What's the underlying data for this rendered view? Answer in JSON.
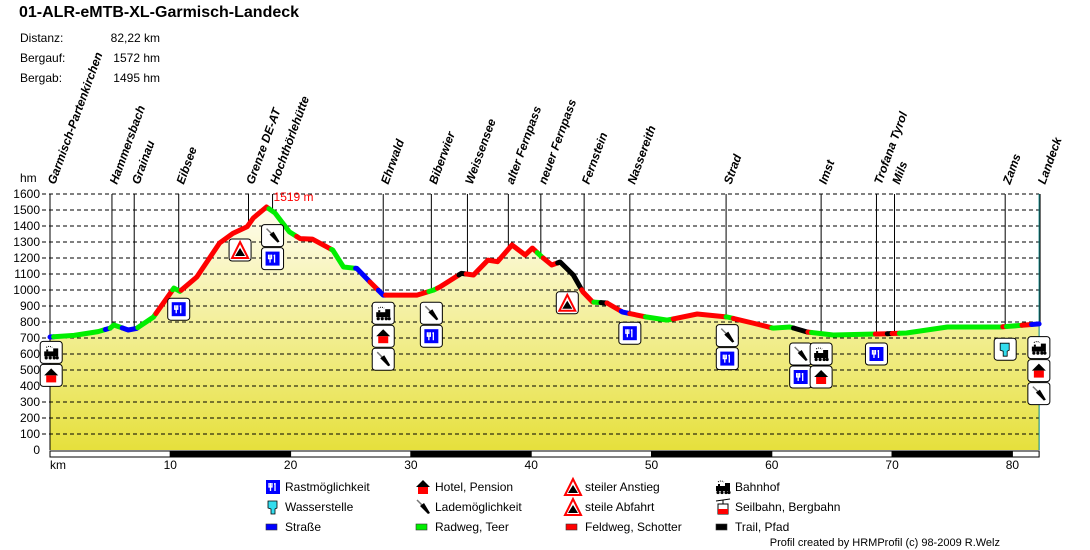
{
  "header": {
    "title": "01-ALR-eMTB-XL-Garmisch-Landeck",
    "stats": [
      {
        "label": "Distanz:",
        "value": "82,22 km"
      },
      {
        "label": "Bergauf:",
        "value": "1572 hm"
      },
      {
        "label": "Bergab:",
        "value": "1495 hm"
      }
    ]
  },
  "credit": "Profil created by HRMProfil (c) 98-2009 R.Welz",
  "colors": {
    "road": "#0000ff",
    "cycle": "#00ee00",
    "gravel": "#ff0000",
    "trail": "#000000",
    "peak": "#ff0000",
    "fill_top": "#fffdf0",
    "fill_bottom": "#e6e03c"
  },
  "chart_data": {
    "type": "area",
    "title": "01-ALR-eMTB-XL-Garmisch-Landeck",
    "xlabel": "km",
    "ylabel": "hm",
    "xlim": [
      0,
      82.22
    ],
    "ylim": [
      0,
      1600
    ],
    "grid": true,
    "x_ticks": [
      10,
      20,
      30,
      40,
      50,
      60,
      70,
      80
    ],
    "y_ticks": [
      0,
      100,
      200,
      300,
      400,
      500,
      600,
      700,
      800,
      900,
      1000,
      1100,
      1200,
      1300,
      1400,
      1500,
      1600
    ],
    "peak": {
      "km": 18.0,
      "elevation": 1519,
      "label": "1519 m"
    },
    "profile": [
      [
        0,
        706
      ],
      [
        2,
        716
      ],
      [
        4,
        740
      ],
      [
        5.0,
        762
      ],
      [
        5.3,
        781
      ],
      [
        6.5,
        750
      ],
      [
        7.2,
        760
      ],
      [
        8.6,
        831
      ],
      [
        10.3,
        1012
      ],
      [
        10.8,
        992
      ],
      [
        12.2,
        1081
      ],
      [
        14.1,
        1294
      ],
      [
        15.2,
        1354
      ],
      [
        16.4,
        1396
      ],
      [
        16.9,
        1450
      ],
      [
        18.0,
        1519
      ],
      [
        18.7,
        1481
      ],
      [
        19.9,
        1363
      ],
      [
        20.8,
        1321
      ],
      [
        21.8,
        1318
      ],
      [
        23.5,
        1250
      ],
      [
        24.4,
        1144
      ],
      [
        25.5,
        1135
      ],
      [
        26.6,
        1050
      ],
      [
        27.7,
        968
      ],
      [
        30.5,
        968
      ],
      [
        31.9,
        1000
      ],
      [
        32.4,
        1019
      ],
      [
        34.2,
        1104
      ],
      [
        35.2,
        1094
      ],
      [
        36.4,
        1187
      ],
      [
        37.2,
        1177
      ],
      [
        38.4,
        1281
      ],
      [
        39.5,
        1219
      ],
      [
        40.1,
        1262
      ],
      [
        40.9,
        1206
      ],
      [
        41.7,
        1156
      ],
      [
        42.4,
        1175
      ],
      [
        43.5,
        1094
      ],
      [
        44.3,
        988
      ],
      [
        45.1,
        925
      ],
      [
        46.3,
        919
      ],
      [
        47.6,
        862
      ],
      [
        49.6,
        831
      ],
      [
        51.3,
        812
      ],
      [
        53.8,
        850
      ],
      [
        56.3,
        831
      ],
      [
        58.4,
        794
      ],
      [
        60.1,
        762
      ],
      [
        61.5,
        769
      ],
      [
        62.9,
        738
      ],
      [
        65.1,
        719
      ],
      [
        68.7,
        725
      ],
      [
        71.2,
        731
      ],
      [
        74.6,
        769
      ],
      [
        79.0,
        769
      ],
      [
        82.22,
        788
      ]
    ],
    "surfaces": [
      [
        0,
        0.3,
        "road"
      ],
      [
        0.3,
        4.6,
        "cycle"
      ],
      [
        4.6,
        5.0,
        "road"
      ],
      [
        5.0,
        6.0,
        "cycle"
      ],
      [
        6.0,
        7.3,
        "road"
      ],
      [
        7.3,
        8.8,
        "cycle"
      ],
      [
        8.8,
        10.2,
        "gravel"
      ],
      [
        10.2,
        10.9,
        "cycle"
      ],
      [
        10.9,
        18.2,
        "gravel"
      ],
      [
        18.2,
        20.5,
        "cycle"
      ],
      [
        20.5,
        23.4,
        "gravel"
      ],
      [
        23.4,
        25.4,
        "cycle"
      ],
      [
        25.4,
        26.6,
        "road"
      ],
      [
        26.6,
        27.3,
        "gravel"
      ],
      [
        27.3,
        27.9,
        "road"
      ],
      [
        27.9,
        31.5,
        "gravel"
      ],
      [
        31.5,
        32.2,
        "cycle"
      ],
      [
        32.2,
        34.0,
        "gravel"
      ],
      [
        34.0,
        34.6,
        "trail"
      ],
      [
        34.6,
        40.5,
        "gravel"
      ],
      [
        40.5,
        41.0,
        "cycle"
      ],
      [
        41.0,
        42.2,
        "gravel"
      ],
      [
        42.2,
        44.2,
        "trail"
      ],
      [
        44.2,
        45.2,
        "gravel"
      ],
      [
        45.2,
        45.8,
        "cycle"
      ],
      [
        45.8,
        46.3,
        "trail"
      ],
      [
        46.3,
        47.5,
        "gravel"
      ],
      [
        47.5,
        48.2,
        "road"
      ],
      [
        48.2,
        49.5,
        "gravel"
      ],
      [
        49.5,
        51.8,
        "cycle"
      ],
      [
        51.8,
        56.2,
        "gravel"
      ],
      [
        56.2,
        56.8,
        "cycle"
      ],
      [
        56.8,
        60.0,
        "gravel"
      ],
      [
        60.0,
        61.8,
        "cycle"
      ],
      [
        61.8,
        63.0,
        "trail"
      ],
      [
        63.0,
        63.3,
        "gravel"
      ],
      [
        63.3,
        68.6,
        "cycle"
      ],
      [
        68.6,
        69.6,
        "gravel"
      ],
      [
        69.6,
        70.0,
        "trail"
      ],
      [
        70.0,
        70.6,
        "gravel"
      ],
      [
        70.6,
        79.2,
        "cycle"
      ],
      [
        79.2,
        79.5,
        "gravel"
      ],
      [
        79.5,
        80.8,
        "cycle"
      ],
      [
        80.8,
        81.6,
        "gravel"
      ],
      [
        81.6,
        82.22,
        "road"
      ]
    ],
    "waypoints": [
      {
        "name": "Garmisch-Partenkirchen",
        "km": 0
      },
      {
        "name": "Hammersbach",
        "km": 5.15
      },
      {
        "name": "Grainau",
        "km": 7.0
      },
      {
        "name": "Eibsee",
        "km": 10.7
      },
      {
        "name": "Grenze DE-AT",
        "km": 16.5
      },
      {
        "name": "Hochthörlehütte",
        "km": 18.5
      },
      {
        "name": "Ehrwald",
        "km": 27.7
      },
      {
        "name": "Biberwier",
        "km": 31.7
      },
      {
        "name": "Weissensee",
        "km": 34.7
      },
      {
        "name": "alter Fernpass",
        "km": 38.1
      },
      {
        "name": "neuer Fernpass",
        "km": 40.8
      },
      {
        "name": "Fernstein",
        "km": 44.4
      },
      {
        "name": "Nassereith",
        "km": 48.2
      },
      {
        "name": "Strad",
        "km": 56.2
      },
      {
        "name": "Imst",
        "km": 64.1
      },
      {
        "name": "Trofana Tyrol",
        "km": 68.7
      },
      {
        "name": "Mils",
        "km": 70.2
      },
      {
        "name": "Zams",
        "km": 79.4
      },
      {
        "name": "Landeck",
        "km": 82.3
      }
    ],
    "markers": [
      {
        "km": 0.1,
        "elevation": 610,
        "icons": [
          "train",
          "hotel"
        ]
      },
      {
        "km": 10.7,
        "elevation": 880,
        "icons": [
          "food"
        ]
      },
      {
        "km": 15.8,
        "elevation": 1250,
        "icons": [
          "ascent"
        ]
      },
      {
        "km": 18.5,
        "elevation": 1340,
        "icons": [
          "charging",
          "food"
        ]
      },
      {
        "km": 27.7,
        "elevation": 855,
        "icons": [
          "train",
          "hotel",
          "charging"
        ]
      },
      {
        "km": 31.7,
        "elevation": 855,
        "icons": [
          "charging",
          "food"
        ]
      },
      {
        "km": 43.0,
        "elevation": 920,
        "icons": [
          "descent"
        ]
      },
      {
        "km": 48.2,
        "elevation": 730,
        "icons": [
          "food"
        ]
      },
      {
        "km": 56.3,
        "elevation": 715,
        "icons": [
          "charging",
          "food"
        ]
      },
      {
        "km": 62.4,
        "elevation": 600,
        "icons": [
          "charging",
          "food"
        ]
      },
      {
        "km": 64.1,
        "elevation": 600,
        "icons": [
          "train",
          "hotel"
        ]
      },
      {
        "km": 68.7,
        "elevation": 600,
        "icons": [
          "food"
        ]
      },
      {
        "km": 79.4,
        "elevation": 630,
        "icons": [
          "water"
        ]
      },
      {
        "km": 82.2,
        "elevation": 640,
        "icons": [
          "train",
          "hotel",
          "charging"
        ]
      }
    ],
    "legend": [
      {
        "icon": "food",
        "label": "Rastmöglichkeit"
      },
      {
        "icon": "hotel",
        "label": "Hotel, Pension"
      },
      {
        "icon": "ascent",
        "label": "steiler Anstieg"
      },
      {
        "icon": "train",
        "label": "Bahnhof"
      },
      {
        "icon": "water",
        "label": "Wasserstelle"
      },
      {
        "icon": "charging",
        "label": "Lademöglichkeit"
      },
      {
        "icon": "descent",
        "label": "steile Abfahrt"
      },
      {
        "icon": "cablecar",
        "label": "Seilbahn, Bergbahn"
      },
      {
        "icon": "swatch-road",
        "label": "Straße"
      },
      {
        "icon": "swatch-cycle",
        "label": "Radweg, Teer"
      },
      {
        "icon": "swatch-gravel",
        "label": "Feldweg, Schotter"
      },
      {
        "icon": "swatch-trail",
        "label": "Trail, Pfad"
      }
    ]
  }
}
